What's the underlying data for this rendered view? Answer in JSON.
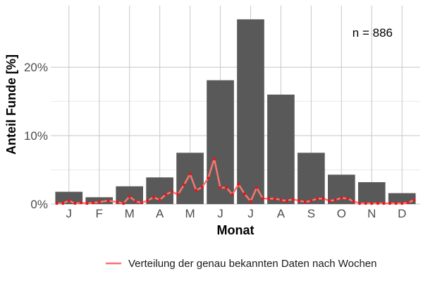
{
  "chart_data": {
    "type": "bar",
    "categories": [
      "J",
      "F",
      "M",
      "A",
      "M",
      "J",
      "J",
      "A",
      "S",
      "O",
      "N",
      "D"
    ],
    "values": [
      1.8,
      1.0,
      2.6,
      3.9,
      7.5,
      18.1,
      27.0,
      16.0,
      7.5,
      4.3,
      3.2,
      1.6
    ],
    "ylim": [
      0,
      29
    ],
    "y_ticks": [
      0,
      10,
      20
    ],
    "y_tick_labels": [
      "0%",
      "10%",
      "20%"
    ],
    "xlabel": "Monat",
    "ylabel": "Anteil Funde [%]",
    "annotation": "n = 886",
    "grid": true,
    "legend_position": "bottom",
    "bar_color": "#595959",
    "series": [
      {
        "name": "Verteilung der genau bekannten Daten nach Wochen",
        "color": "#f8766d",
        "point_color": "#e8141c",
        "x": [
          0.6,
          0.8,
          1.0,
          1.2,
          1.4,
          1.6,
          1.8,
          2.0,
          2.3,
          2.6,
          2.8,
          3.0,
          3.2,
          3.4,
          3.6,
          3.8,
          4.0,
          4.2,
          4.4,
          4.6,
          4.8,
          5.0,
          5.2,
          5.4,
          5.6,
          5.8,
          6.0,
          6.2,
          6.4,
          6.6,
          6.8,
          7.0,
          7.2,
          7.4,
          7.6,
          7.8,
          8.0,
          8.2,
          8.4,
          8.6,
          8.8,
          9.0,
          9.2,
          9.4,
          9.6,
          9.8,
          10.0,
          10.2,
          10.4,
          10.6,
          10.8,
          11.0,
          11.2,
          11.4,
          11.6,
          11.8,
          12.0,
          12.2,
          12.4
        ],
        "values": [
          0.1,
          0.1,
          0.5,
          0.1,
          0.2,
          0.1,
          0.2,
          0.3,
          0.5,
          0.3,
          0.1,
          1.1,
          0.4,
          0.2,
          0.5,
          1.0,
          0.6,
          1.4,
          1.8,
          1.4,
          2.8,
          4.4,
          2.0,
          2.5,
          3.8,
          6.6,
          2.4,
          2.4,
          1.4,
          2.9,
          1.5,
          0.4,
          2.4,
          0.8,
          0.8,
          0.8,
          0.6,
          0.5,
          0.7,
          0.5,
          0.3,
          0.5,
          0.8,
          0.8,
          0.5,
          0.6,
          0.9,
          0.8,
          0.4,
          0.1,
          0.1,
          0.1,
          0.1,
          0.1,
          0.1,
          0.1,
          0.1,
          0.2,
          0.6
        ]
      }
    ]
  }
}
